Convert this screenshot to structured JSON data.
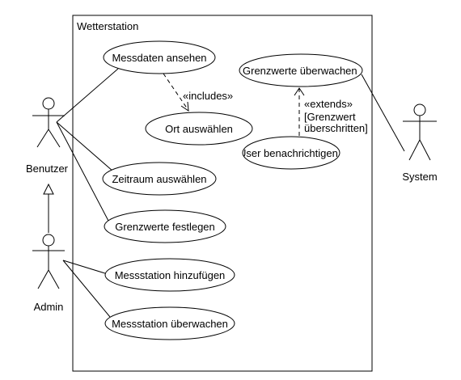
{
  "system_boundary": {
    "title": "Wetterstation"
  },
  "actors": {
    "benutzer": "Benutzer",
    "admin": "Admin",
    "system": "System"
  },
  "use_cases": {
    "messdaten_ansehen": "Messdaten ansehen",
    "ort_auswaehlen": "Ort auswählen",
    "zeitraum_auswaehlen": "Zeitraum auswählen",
    "grenzwerte_festlegen": "Grenzwerte festlegen",
    "grenzwerte_ueberwachen": "Grenzwerte überwachen",
    "user_benachrichtigen": "User benachrichtigen",
    "messstation_hinzufuegen": "Messstation hinzufügen",
    "messstation_ueberwachen": "Messstation überwachen"
  },
  "relationships": {
    "includes_label": "«includes»",
    "extends_label": "«extends»",
    "extends_condition_line1": "[Grenzwert",
    "extends_condition_line2": "überschritten]"
  }
}
